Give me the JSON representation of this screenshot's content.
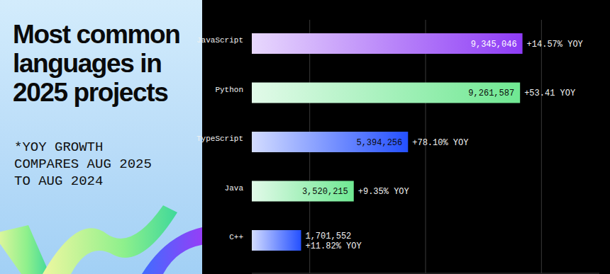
{
  "chart_data": {
    "type": "bar",
    "orientation": "horizontal",
    "title": "Most common languages in 2025 projects",
    "subtitle": "*YOY GROWTH COMPARES AUG 2025 TO AUG 2024",
    "categories": [
      "JavaScript",
      "Python",
      "TypeScript",
      "Java",
      "C++"
    ],
    "values": [
      9345046,
      9261587,
      5394256,
      3520215,
      1701552
    ],
    "value_labels": [
      "9,345,046",
      "9,261,587",
      "5,394,256",
      "3,520,215",
      "1,701,552"
    ],
    "annotations": [
      "+14.57% YOY",
      "+53.41 YOY",
      "+78.10% YOY",
      "+9.35% YOY",
      "+11.82% YOY"
    ],
    "colors": [
      "#8e3cf6",
      "#6fe892",
      "#2450ff",
      "#6fe892",
      "#2450ff"
    ],
    "xlim": [
      0,
      12000000
    ],
    "xticks": [
      2000000,
      6000000,
      10000000
    ],
    "grid": true,
    "data_labels": true,
    "tick_labels": false
  }
}
